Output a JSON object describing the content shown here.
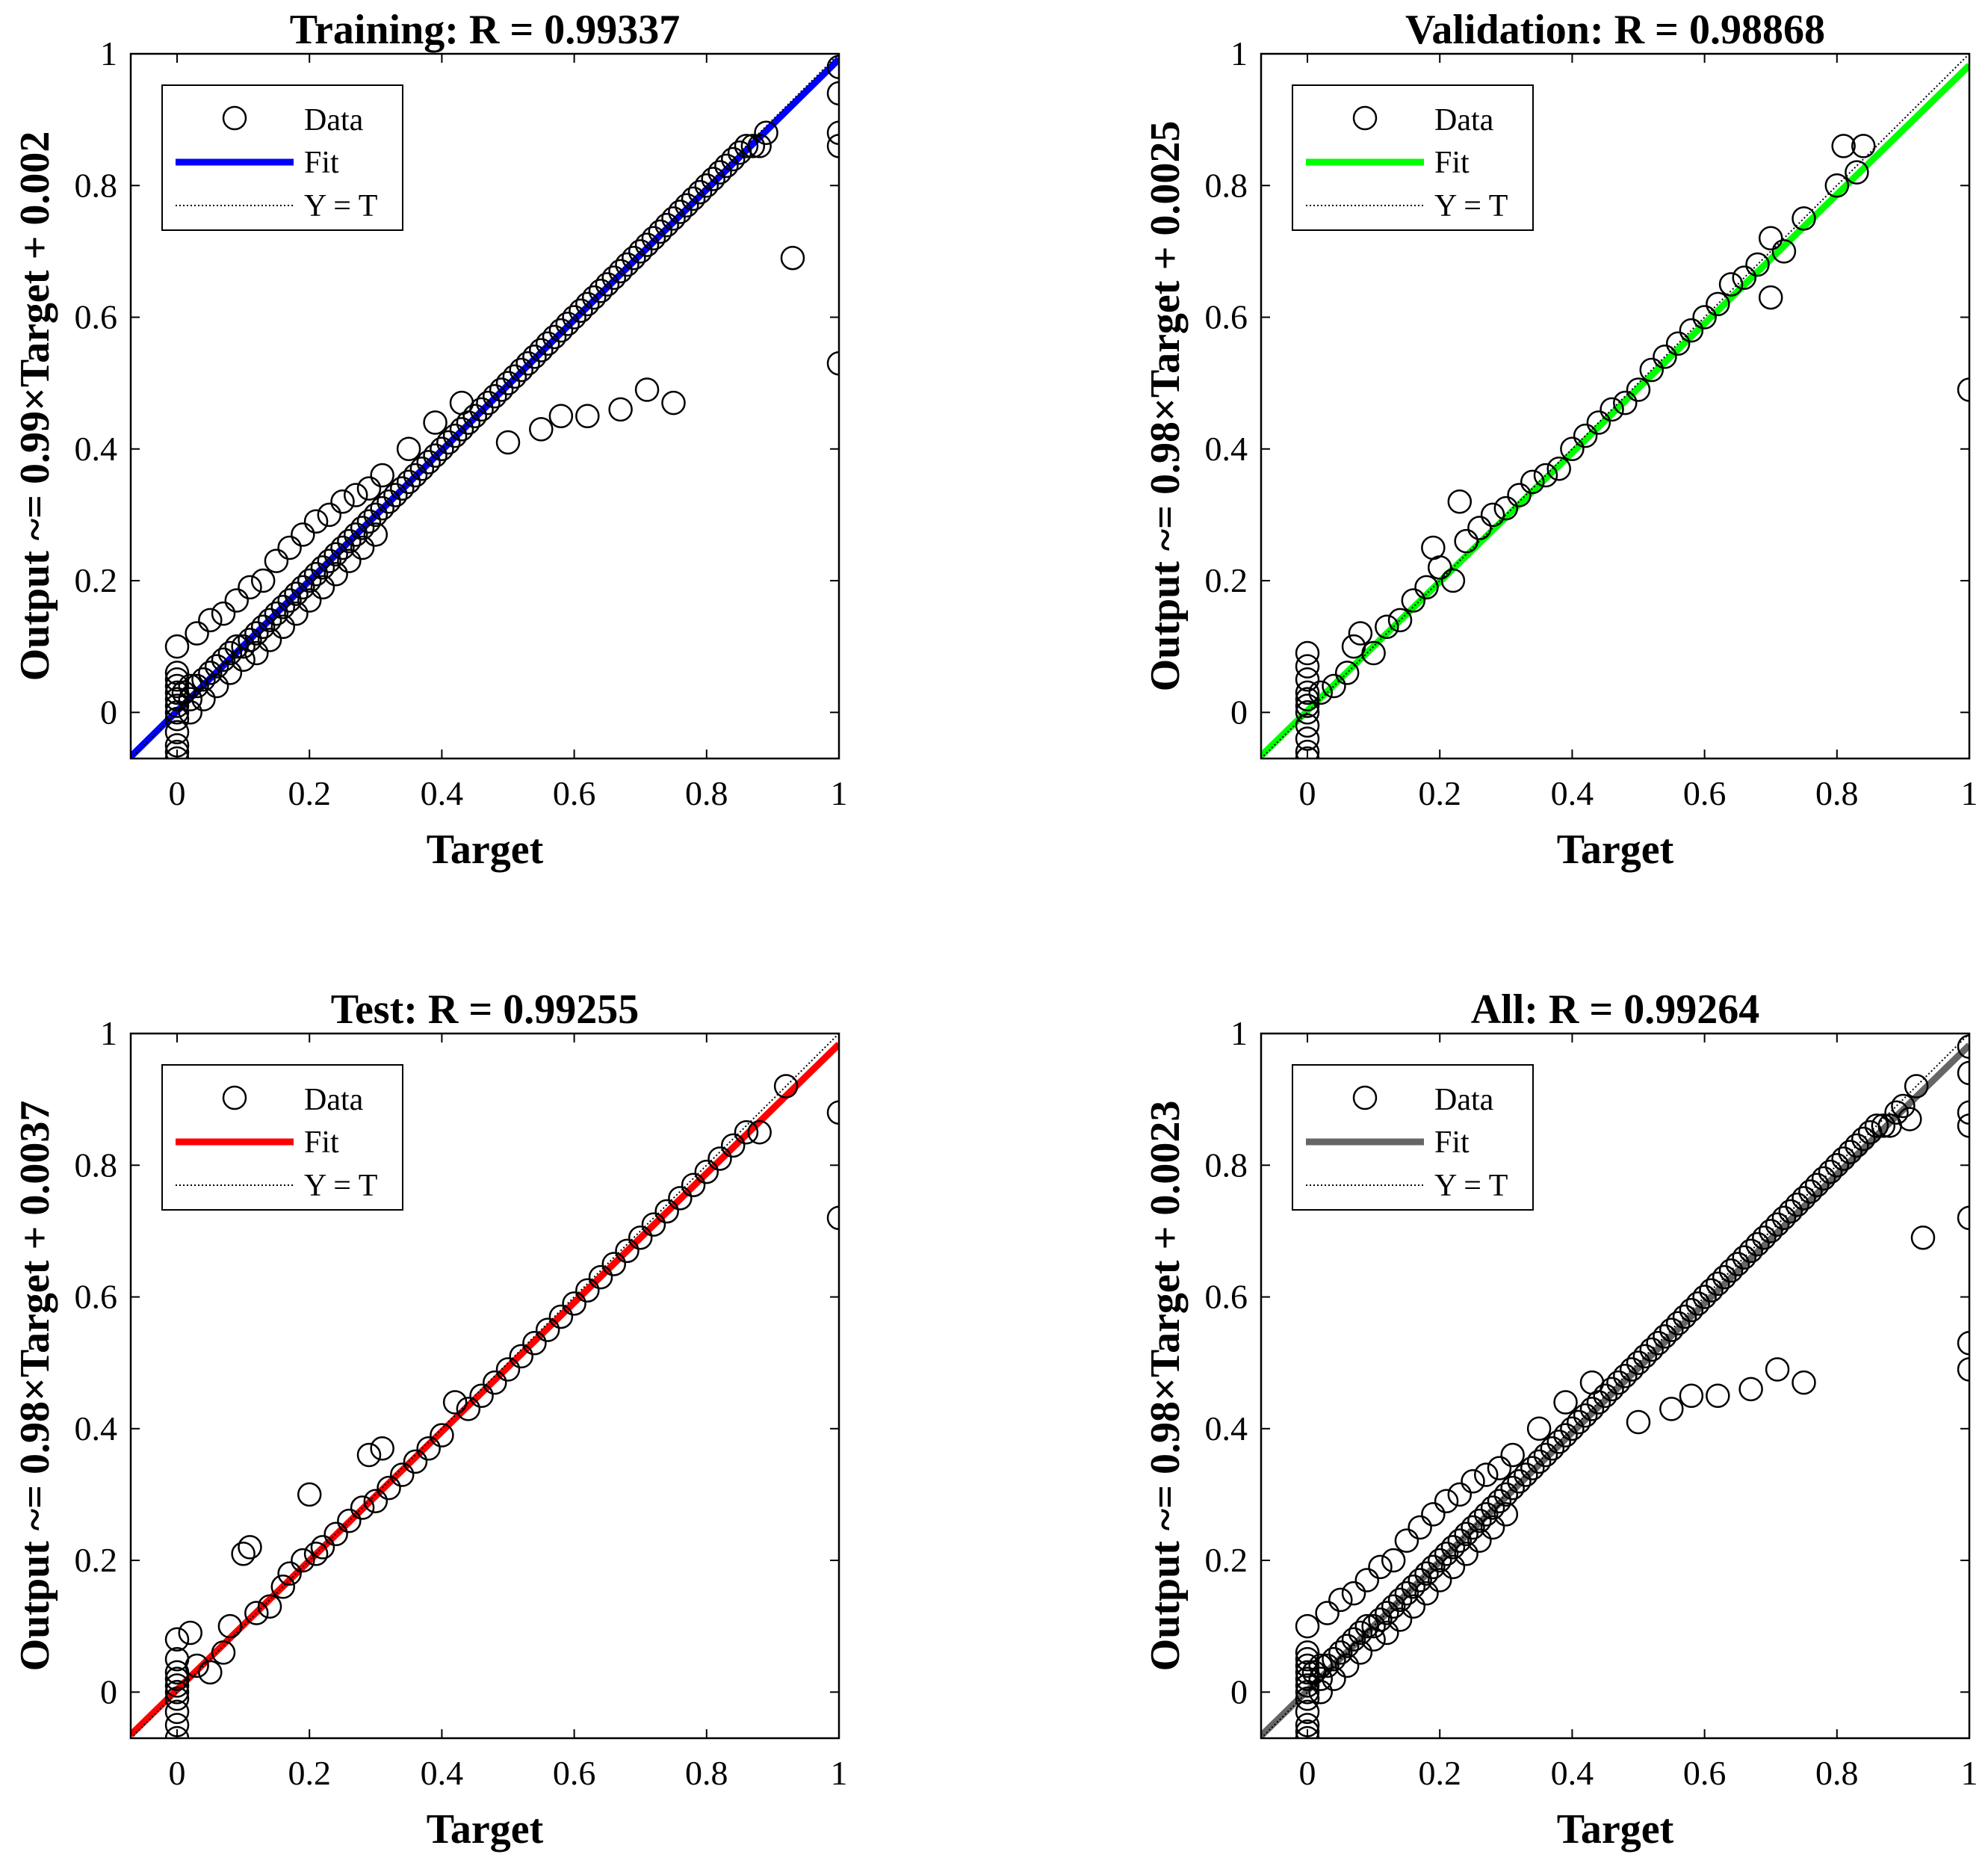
{
  "chart_data": [
    {
      "type": "scatter",
      "title": "Training: R = 0.99337",
      "xlabel": "Target",
      "ylabel": "Output ~= 0.99×Target + 0.002",
      "xlim": [
        -0.07,
        1
      ],
      "ylim": [
        -0.07,
        1
      ],
      "xticks": [
        "0",
        "0.2",
        "0.4",
        "0.6",
        "0.8",
        "1"
      ],
      "yticks": [
        "0",
        "0.2",
        "0.4",
        "0.6",
        "0.8",
        "1"
      ],
      "legend": {
        "position": "top-left",
        "entries": [
          "Data",
          "Fit",
          "Y = T"
        ]
      },
      "fit": {
        "slope": 0.99,
        "intercept": 0.002,
        "color": "#0000ff"
      },
      "series": [
        {
          "name": "Data",
          "x": [
            0,
            0,
            0,
            0,
            0,
            0,
            0,
            0,
            0,
            0,
            0,
            0,
            0,
            0.01,
            0.02,
            0.02,
            0.03,
            0.04,
            0.05,
            0.06,
            0.07,
            0.08,
            0.09,
            0.1,
            0.11,
            0.12,
            0.13,
            0.14,
            0.15,
            0.16,
            0.17,
            0.18,
            0.19,
            0.2,
            0.21,
            0.22,
            0.23,
            0.24,
            0.25,
            0.26,
            0.27,
            0.28,
            0.29,
            0.3,
            0.31,
            0.32,
            0.33,
            0.34,
            0.35,
            0.36,
            0.37,
            0.38,
            0.39,
            0.4,
            0.41,
            0.42,
            0.43,
            0.44,
            0.45,
            0.46,
            0.47,
            0.48,
            0.49,
            0.5,
            0.51,
            0.52,
            0.53,
            0.54,
            0.55,
            0.56,
            0.57,
            0.58,
            0.59,
            0.6,
            0.61,
            0.62,
            0.63,
            0.64,
            0.65,
            0.66,
            0.67,
            0.68,
            0.69,
            0.7,
            0.71,
            0.72,
            0.73,
            0.74,
            0.75,
            0.76,
            0.77,
            0.78,
            0.79,
            0.8,
            0.81,
            0.82,
            0.83,
            0.84,
            0.85,
            0.86,
            0.87,
            0.88,
            0.89,
            0.03,
            0.05,
            0.07,
            0.09,
            0.11,
            0.13,
            0.15,
            0.17,
            0.19,
            0.21,
            0.23,
            0.25,
            0.27,
            0.29,
            0.31,
            0.35,
            0.39,
            0.43,
            0.02,
            0.04,
            0.06,
            0.08,
            0.1,
            0.12,
            0.14,
            0.16,
            0.18,
            0.2,
            0.22,
            0.24,
            0.26,
            0.28,
            0.3,
            0.5,
            0.55,
            0.58,
            0.62,
            0.67,
            0.71,
            0.75,
            0.93,
            1,
            1,
            1,
            1,
            1
          ],
          "y": [
            -0.07,
            -0.06,
            -0.05,
            -0.03,
            -0.01,
            0,
            0.01,
            0.02,
            0.03,
            0.04,
            0.05,
            0.06,
            0.1,
            0.03,
            0.02,
            0.04,
            0.04,
            0.05,
            0.06,
            0.07,
            0.08,
            0.09,
            0.1,
            0.1,
            0.11,
            0.12,
            0.13,
            0.14,
            0.15,
            0.16,
            0.17,
            0.18,
            0.19,
            0.2,
            0.21,
            0.22,
            0.23,
            0.24,
            0.25,
            0.26,
            0.27,
            0.28,
            0.29,
            0.3,
            0.31,
            0.32,
            0.33,
            0.34,
            0.35,
            0.36,
            0.37,
            0.38,
            0.39,
            0.4,
            0.41,
            0.42,
            0.43,
            0.44,
            0.45,
            0.46,
            0.47,
            0.48,
            0.49,
            0.5,
            0.51,
            0.52,
            0.53,
            0.54,
            0.55,
            0.56,
            0.57,
            0.58,
            0.59,
            0.6,
            0.61,
            0.62,
            0.63,
            0.64,
            0.65,
            0.66,
            0.67,
            0.68,
            0.69,
            0.7,
            0.71,
            0.72,
            0.73,
            0.74,
            0.75,
            0.76,
            0.77,
            0.78,
            0.79,
            0.8,
            0.81,
            0.82,
            0.83,
            0.84,
            0.85,
            0.86,
            0.86,
            0.86,
            0.88,
            0.12,
            0.14,
            0.15,
            0.17,
            0.19,
            0.2,
            0.23,
            0.25,
            0.27,
            0.29,
            0.3,
            0.32,
            0.33,
            0.34,
            0.36,
            0.4,
            0.44,
            0.47,
            0.0,
            0.02,
            0.04,
            0.06,
            0.08,
            0.09,
            0.11,
            0.13,
            0.15,
            0.17,
            0.19,
            0.21,
            0.23,
            0.25,
            0.27,
            0.41,
            0.43,
            0.45,
            0.45,
            0.46,
            0.49,
            0.47,
            0.69,
            0.98,
            0.94,
            0.88,
            0.86,
            0.53
          ]
        }
      ]
    },
    {
      "type": "scatter",
      "title": "Validation: R = 0.98868",
      "xlabel": "Target",
      "ylabel": "Output ~= 0.98×Target + 0.0025",
      "xlim": [
        -0.07,
        1
      ],
      "ylim": [
        -0.07,
        1
      ],
      "xticks": [
        "0",
        "0.2",
        "0.4",
        "0.6",
        "0.8",
        "1"
      ],
      "yticks": [
        "0",
        "0.2",
        "0.4",
        "0.6",
        "0.8",
        "1"
      ],
      "legend": {
        "position": "top-left",
        "entries": [
          "Data",
          "Fit",
          "Y = T"
        ]
      },
      "fit": {
        "slope": 0.98,
        "intercept": 0.0025,
        "color": "#00ff00"
      },
      "series": [
        {
          "name": "Data",
          "x": [
            0,
            0,
            0,
            0,
            0,
            0,
            0,
            0,
            0,
            0,
            0,
            0.02,
            0.04,
            0.06,
            0.07,
            0.08,
            0.1,
            0.12,
            0.14,
            0.16,
            0.18,
            0.19,
            0.2,
            0.22,
            0.23,
            0.24,
            0.26,
            0.28,
            0.3,
            0.32,
            0.34,
            0.36,
            0.38,
            0.4,
            0.42,
            0.44,
            0.46,
            0.48,
            0.5,
            0.52,
            0.54,
            0.56,
            0.58,
            0.6,
            0.62,
            0.64,
            0.66,
            0.68,
            0.7,
            0.7,
            0.72,
            0.75,
            0.8,
            0.81,
            0.83,
            0.84,
            1
          ],
          "y": [
            -0.07,
            -0.06,
            -0.04,
            -0.02,
            0,
            0.01,
            0.02,
            0.03,
            0.05,
            0.07,
            0.09,
            0.03,
            0.04,
            0.06,
            0.1,
            0.12,
            0.09,
            0.13,
            0.14,
            0.17,
            0.19,
            0.25,
            0.22,
            0.2,
            0.32,
            0.26,
            0.28,
            0.3,
            0.31,
            0.33,
            0.35,
            0.36,
            0.37,
            0.4,
            0.42,
            0.44,
            0.46,
            0.47,
            0.49,
            0.52,
            0.54,
            0.56,
            0.58,
            0.6,
            0.62,
            0.65,
            0.66,
            0.68,
            0.63,
            0.72,
            0.7,
            0.75,
            0.8,
            0.86,
            0.82,
            0.86,
            0.49
          ]
        }
      ]
    },
    {
      "type": "scatter",
      "title": "Test: R = 0.99255",
      "xlabel": "Target",
      "ylabel": "Output ~= 0.98×Target + 0.0037",
      "xlim": [
        -0.07,
        1
      ],
      "ylim": [
        -0.07,
        1
      ],
      "xticks": [
        "0",
        "0.2",
        "0.4",
        "0.6",
        "0.8",
        "1"
      ],
      "yticks": [
        "0",
        "0.2",
        "0.4",
        "0.6",
        "0.8",
        "1"
      ],
      "legend": {
        "position": "top-left",
        "entries": [
          "Data",
          "Fit",
          "Y = T"
        ]
      },
      "fit": {
        "slope": 0.98,
        "intercept": 0.0037,
        "color": "#ff0000"
      },
      "series": [
        {
          "name": "Data",
          "x": [
            0,
            0,
            0,
            0,
            0,
            0,
            0,
            0,
            0,
            0,
            0.02,
            0.03,
            0.05,
            0.07,
            0.08,
            0.1,
            0.11,
            0.12,
            0.14,
            0.16,
            0.17,
            0.19,
            0.2,
            0.21,
            0.22,
            0.24,
            0.26,
            0.28,
            0.29,
            0.3,
            0.31,
            0.32,
            0.34,
            0.36,
            0.38,
            0.4,
            0.42,
            0.44,
            0.46,
            0.48,
            0.5,
            0.52,
            0.54,
            0.56,
            0.58,
            0.6,
            0.62,
            0.64,
            0.66,
            0.68,
            0.7,
            0.72,
            0.74,
            0.76,
            0.78,
            0.8,
            0.82,
            0.84,
            0.86,
            0.88,
            0.92,
            1,
            1
          ],
          "y": [
            -0.07,
            -0.05,
            -0.03,
            -0.01,
            0,
            0.01,
            0.02,
            0.03,
            0.05,
            0.08,
            0.09,
            0.04,
            0.03,
            0.06,
            0.1,
            0.21,
            0.22,
            0.12,
            0.13,
            0.16,
            0.18,
            0.2,
            0.3,
            0.21,
            0.22,
            0.24,
            0.26,
            0.28,
            0.36,
            0.29,
            0.37,
            0.31,
            0.33,
            0.35,
            0.37,
            0.39,
            0.44,
            0.43,
            0.45,
            0.47,
            0.49,
            0.51,
            0.53,
            0.55,
            0.57,
            0.59,
            0.61,
            0.63,
            0.65,
            0.67,
            0.69,
            0.71,
            0.73,
            0.75,
            0.77,
            0.79,
            0.81,
            0.83,
            0.85,
            0.85,
            0.92,
            0.88,
            0.72
          ]
        }
      ]
    },
    {
      "type": "scatter",
      "title": "All: R = 0.99264",
      "xlabel": "Target",
      "ylabel": "Output ~= 0.98×Target + 0.0023",
      "xlim": [
        -0.07,
        1
      ],
      "ylim": [
        -0.07,
        1
      ],
      "xticks": [
        "0",
        "0.2",
        "0.4",
        "0.6",
        "0.8",
        "1"
      ],
      "yticks": [
        "0",
        "0.2",
        "0.4",
        "0.6",
        "0.8",
        "1"
      ],
      "legend": {
        "position": "top-left",
        "entries": [
          "Data",
          "Fit",
          "Y = T"
        ]
      },
      "fit": {
        "slope": 0.98,
        "intercept": 0.0023,
        "color": "#666666"
      },
      "series": [
        {
          "name": "Data",
          "x": [
            0,
            0,
            0,
            0,
            0,
            0,
            0,
            0,
            0,
            0,
            0,
            0,
            0,
            0.01,
            0.02,
            0.02,
            0.03,
            0.04,
            0.05,
            0.06,
            0.07,
            0.08,
            0.09,
            0.1,
            0.11,
            0.12,
            0.13,
            0.14,
            0.15,
            0.16,
            0.17,
            0.18,
            0.19,
            0.2,
            0.21,
            0.22,
            0.23,
            0.24,
            0.25,
            0.26,
            0.27,
            0.28,
            0.29,
            0.3,
            0.31,
            0.32,
            0.33,
            0.34,
            0.35,
            0.36,
            0.37,
            0.38,
            0.39,
            0.4,
            0.41,
            0.42,
            0.43,
            0.44,
            0.45,
            0.46,
            0.47,
            0.48,
            0.49,
            0.5,
            0.51,
            0.52,
            0.53,
            0.54,
            0.55,
            0.56,
            0.57,
            0.58,
            0.59,
            0.6,
            0.61,
            0.62,
            0.63,
            0.64,
            0.65,
            0.66,
            0.67,
            0.68,
            0.69,
            0.7,
            0.71,
            0.72,
            0.73,
            0.74,
            0.75,
            0.76,
            0.77,
            0.78,
            0.79,
            0.8,
            0.81,
            0.82,
            0.83,
            0.84,
            0.85,
            0.86,
            0.87,
            0.88,
            0.89,
            0.9,
            0.91,
            0.92,
            0.03,
            0.05,
            0.07,
            0.09,
            0.11,
            0.13,
            0.15,
            0.17,
            0.19,
            0.21,
            0.23,
            0.25,
            0.27,
            0.29,
            0.31,
            0.35,
            0.39,
            0.43,
            0.02,
            0.04,
            0.06,
            0.08,
            0.1,
            0.12,
            0.14,
            0.16,
            0.18,
            0.2,
            0.22,
            0.24,
            0.26,
            0.28,
            0.3,
            0.5,
            0.55,
            0.58,
            0.62,
            0.67,
            0.71,
            0.75,
            0.93,
            1,
            1,
            1,
            1,
            1,
            1,
            1
          ],
          "y": [
            -0.07,
            -0.06,
            -0.05,
            -0.03,
            -0.01,
            0,
            0.01,
            0.02,
            0.03,
            0.04,
            0.05,
            0.06,
            0.1,
            0.03,
            0.02,
            0.04,
            0.04,
            0.05,
            0.06,
            0.07,
            0.08,
            0.09,
            0.1,
            0.1,
            0.11,
            0.12,
            0.13,
            0.14,
            0.15,
            0.16,
            0.17,
            0.18,
            0.19,
            0.2,
            0.21,
            0.22,
            0.23,
            0.24,
            0.25,
            0.26,
            0.27,
            0.28,
            0.29,
            0.3,
            0.31,
            0.32,
            0.33,
            0.34,
            0.35,
            0.36,
            0.37,
            0.38,
            0.39,
            0.4,
            0.41,
            0.42,
            0.43,
            0.44,
            0.45,
            0.46,
            0.47,
            0.48,
            0.49,
            0.5,
            0.51,
            0.52,
            0.53,
            0.54,
            0.55,
            0.56,
            0.57,
            0.58,
            0.59,
            0.6,
            0.61,
            0.62,
            0.63,
            0.64,
            0.65,
            0.66,
            0.67,
            0.68,
            0.69,
            0.7,
            0.71,
            0.72,
            0.73,
            0.74,
            0.75,
            0.76,
            0.77,
            0.78,
            0.79,
            0.8,
            0.81,
            0.82,
            0.83,
            0.84,
            0.85,
            0.86,
            0.86,
            0.86,
            0.88,
            0.89,
            0.87,
            0.92,
            0.12,
            0.14,
            0.15,
            0.17,
            0.19,
            0.2,
            0.23,
            0.25,
            0.27,
            0.29,
            0.3,
            0.32,
            0.33,
            0.34,
            0.36,
            0.4,
            0.44,
            0.47,
            0.0,
            0.02,
            0.04,
            0.06,
            0.08,
            0.09,
            0.11,
            0.13,
            0.15,
            0.17,
            0.19,
            0.21,
            0.23,
            0.25,
            0.27,
            0.41,
            0.43,
            0.45,
            0.45,
            0.46,
            0.49,
            0.47,
            0.69,
            0.98,
            0.94,
            0.88,
            0.86,
            0.72,
            0.53,
            0.49
          ]
        }
      ]
    }
  ]
}
